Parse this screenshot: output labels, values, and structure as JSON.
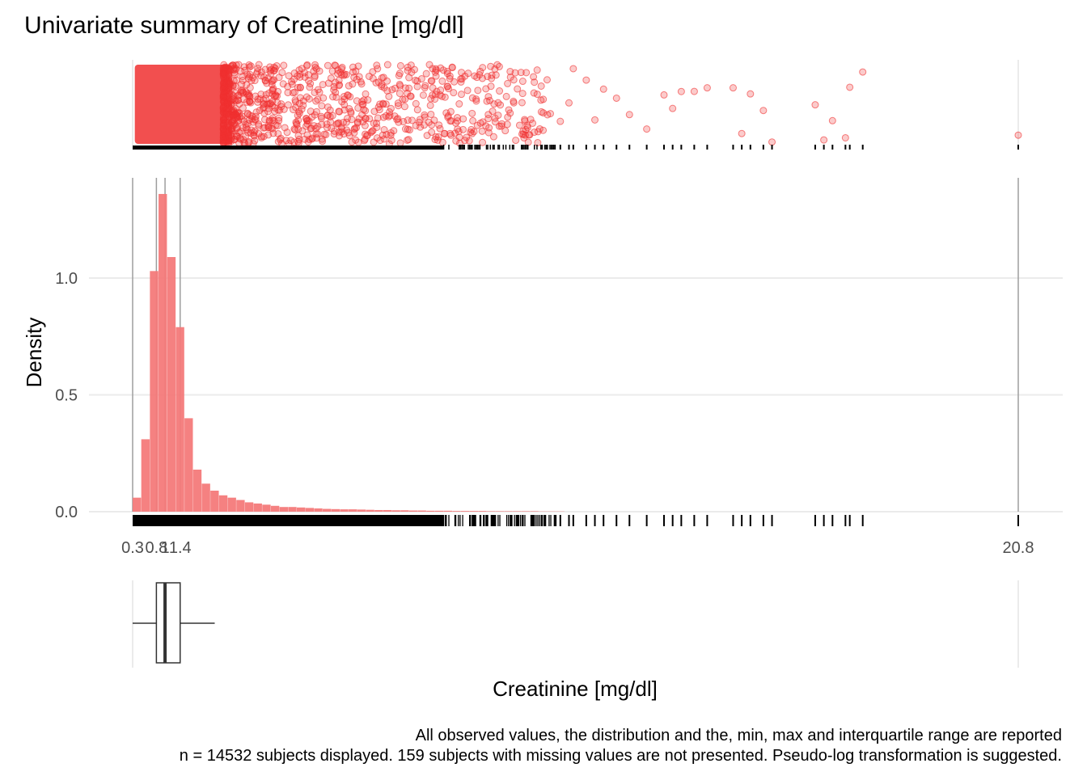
{
  "chart_data": {
    "type": "histogram",
    "title": "Univariate summary of Creatinine [mg/dl]",
    "xlabel": "Creatinine [mg/dl]",
    "ylabel": "Density",
    "xlim": [
      0.3,
      20.8
    ],
    "ylim": [
      0,
      1.45
    ],
    "y_ticks": [
      {
        "value": 0.0,
        "label": "0.0"
      },
      {
        "value": 0.5,
        "label": "0.5"
      },
      {
        "value": 1.0,
        "label": "1.0"
      }
    ],
    "x_ticks": [
      {
        "value": 0.3,
        "label": "0.3"
      },
      {
        "value": 0.85,
        "label": "0.8"
      },
      {
        "value": 1.05,
        "label": "1"
      },
      {
        "value": 1.4,
        "label": "1.4"
      },
      {
        "value": 20.8,
        "label": "20.8"
      }
    ],
    "summary": {
      "min": 0.3,
      "q1": 0.85,
      "median": 1.05,
      "q3": 1.4,
      "max": 20.8,
      "whisker_high": 2.2
    },
    "bin_width": 0.2,
    "bins_x": [
      0.3,
      0.5,
      0.7,
      0.9,
      1.1,
      1.3,
      1.5,
      1.7,
      1.9,
      2.1,
      2.3,
      2.5,
      2.7,
      2.9,
      3.1,
      3.3,
      3.5,
      3.7,
      3.9,
      4.1,
      4.3,
      4.5,
      4.7,
      4.9,
      5.1,
      5.3,
      5.5,
      5.7,
      5.9,
      6.1,
      6.3,
      6.5,
      6.7,
      6.9,
      7.1,
      7.3,
      7.5,
      7.7,
      7.9,
      8.1,
      8.3,
      8.5,
      8.7,
      8.9,
      9.1,
      9.3,
      9.5,
      9.7,
      9.9,
      10.1
    ],
    "density": [
      0.06,
      0.31,
      1.03,
      1.36,
      1.09,
      0.79,
      0.4,
      0.18,
      0.12,
      0.09,
      0.07,
      0.06,
      0.05,
      0.04,
      0.035,
      0.03,
      0.025,
      0.02,
      0.02,
      0.018,
      0.016,
      0.014,
      0.012,
      0.011,
      0.01,
      0.01,
      0.009,
      0.008,
      0.007,
      0.007,
      0.006,
      0.006,
      0.005,
      0.005,
      0.004,
      0.004,
      0.004,
      0.003,
      0.003,
      0.003,
      0.003,
      0.002,
      0.002,
      0.002,
      0.002,
      0.002,
      0.002,
      0.001,
      0.001,
      0.001
    ],
    "outlier_values": [
      10.2,
      10.4,
      10.5,
      10.8,
      11.0,
      11.2,
      11.5,
      11.8,
      12.2,
      12.6,
      12.8,
      13.0,
      13.3,
      13.6,
      14.2,
      14.4,
      14.6,
      14.9,
      15.1,
      16.1,
      16.3,
      16.5,
      16.8,
      16.9,
      17.2,
      20.8
    ],
    "caption": [
      "All observed values, the distribution and the, min, max and interquartile range are reported",
      "n = 14532 subjects displayed. 159 subjects with missing values are not presented. Pseudo-log transformation is suggested."
    ],
    "colors": {
      "points": "#f03030",
      "bars": "#f47a7a",
      "grid": "#ebebeb",
      "vline": "#b3b3b3"
    }
  }
}
